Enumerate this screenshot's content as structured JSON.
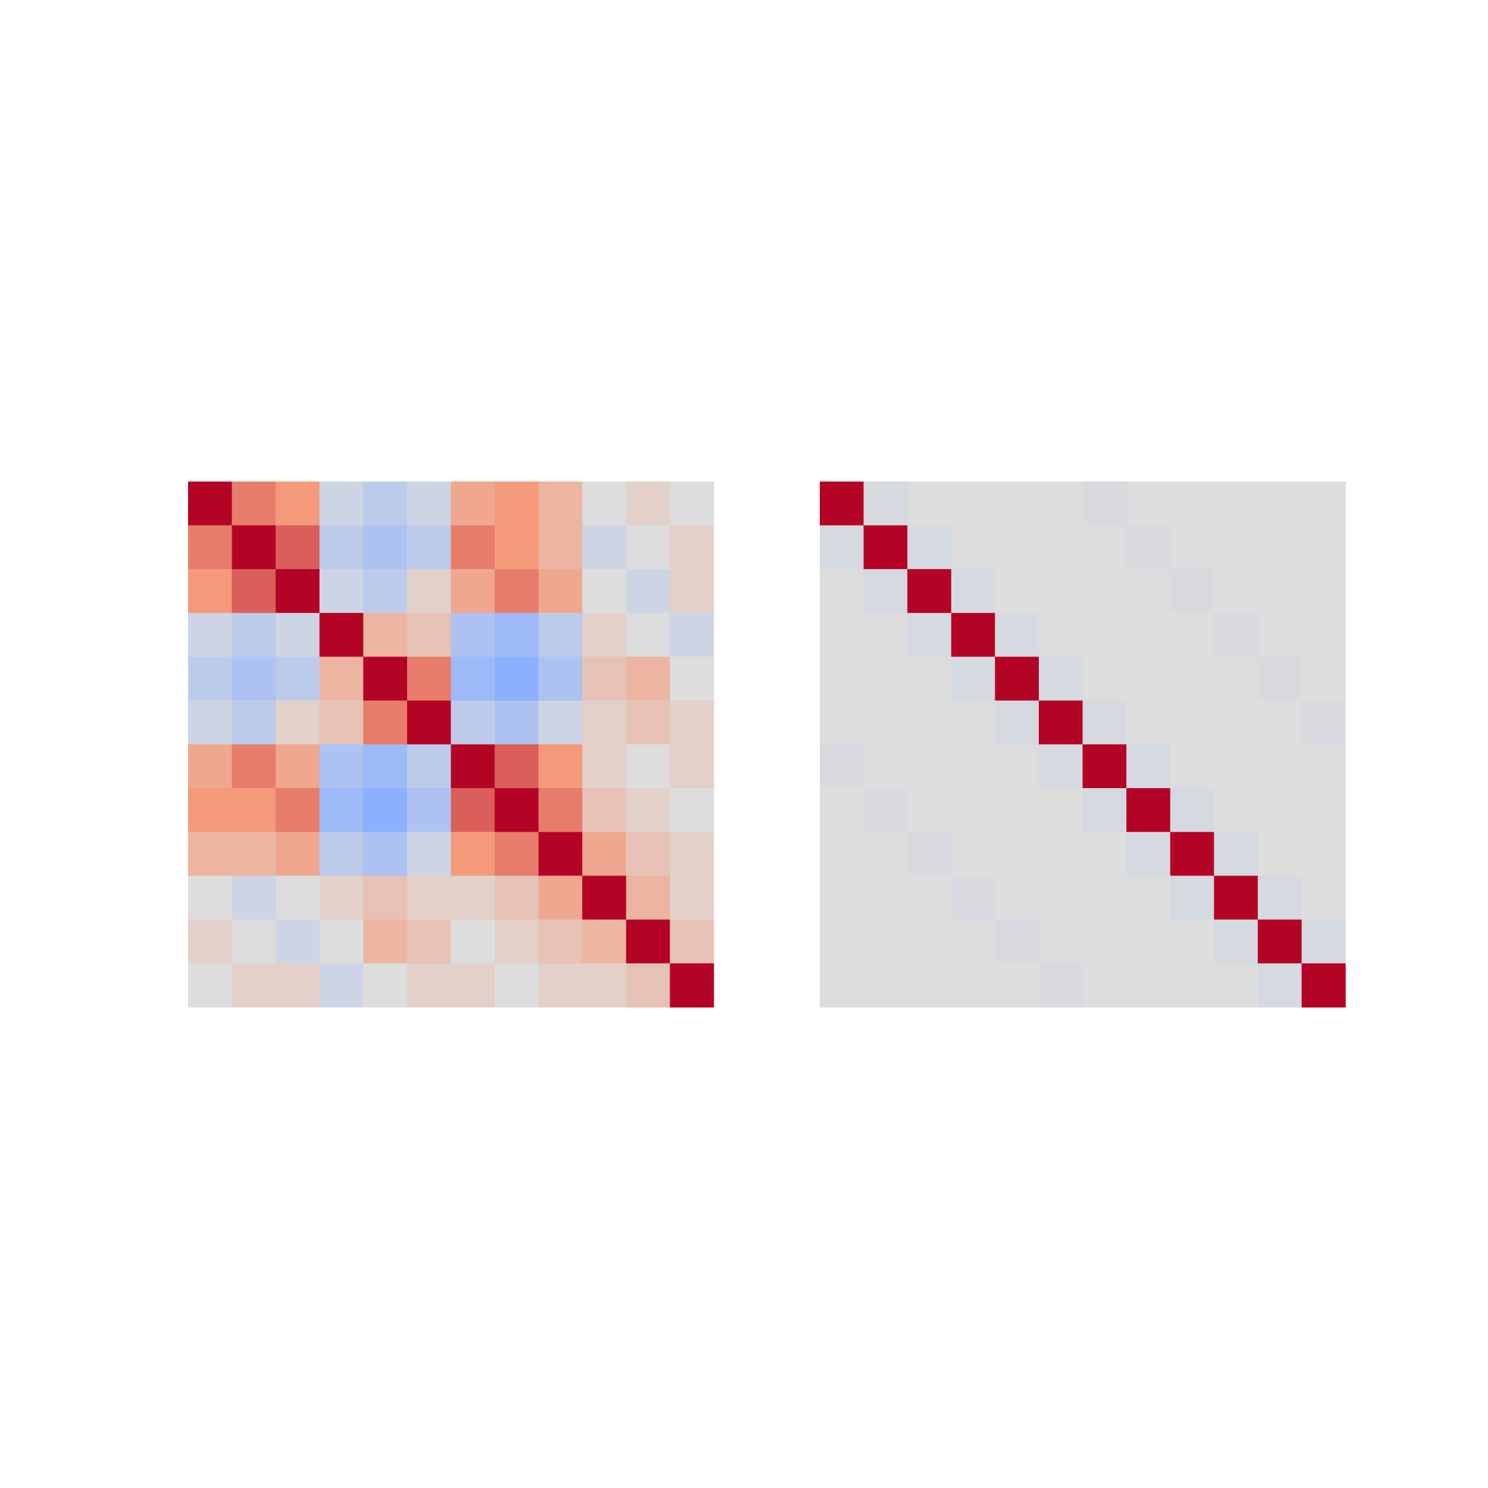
{
  "chart_data": [
    {
      "type": "heatmap",
      "clim": [
        -1,
        1
      ],
      "colors": [
        "#3b4cc0",
        "#8db0fe",
        "#dddddd",
        "#f49a7b",
        "#b40426"
      ],
      "values": [
        [
          1,
          0.6,
          0.5,
          -0.1,
          -0.2,
          -0.1,
          0.4,
          0.5,
          0.3,
          0,
          0.1,
          0
        ],
        [
          0.6,
          1,
          0.7,
          -0.2,
          -0.3,
          -0.2,
          0.6,
          0.5,
          0.3,
          -0.1,
          0,
          0.1
        ],
        [
          0.5,
          0.7,
          1,
          -0.1,
          -0.2,
          0.1,
          0.4,
          0.6,
          0.4,
          0,
          -0.1,
          0.1
        ],
        [
          -0.1,
          -0.2,
          -0.1,
          1,
          0.3,
          0.2,
          -0.3,
          -0.4,
          -0.2,
          0.1,
          0,
          -0.1
        ],
        [
          -0.2,
          -0.3,
          -0.2,
          0.3,
          1,
          0.6,
          -0.4,
          -0.5,
          -0.3,
          0.2,
          0.3,
          0
        ],
        [
          -0.1,
          -0.2,
          0.1,
          0.2,
          0.6,
          1,
          -0.2,
          -0.3,
          -0.1,
          0.1,
          0.2,
          0.1
        ],
        [
          0.4,
          0.6,
          0.4,
          -0.3,
          -0.4,
          -0.2,
          1,
          0.7,
          0.5,
          0.1,
          0,
          0.1
        ],
        [
          0.5,
          0.5,
          0.6,
          -0.4,
          -0.5,
          -0.3,
          0.7,
          1,
          0.6,
          0.2,
          0.1,
          0
        ],
        [
          0.3,
          0.3,
          0.4,
          -0.2,
          -0.3,
          -0.1,
          0.5,
          0.6,
          1,
          0.4,
          0.2,
          0.1
        ],
        [
          0,
          -0.1,
          0,
          0.1,
          0.2,
          0.1,
          0.1,
          0.2,
          0.4,
          1,
          0.3,
          0.1
        ],
        [
          0.1,
          0,
          -0.1,
          0,
          0.3,
          0.2,
          0,
          0.1,
          0.2,
          0.3,
          1,
          0.2
        ],
        [
          0,
          0.1,
          0.1,
          -0.1,
          0,
          0.1,
          0.1,
          0,
          0.1,
          0.1,
          0.2,
          1
        ]
      ]
    },
    {
      "type": "heatmap",
      "clim": [
        -1,
        1
      ],
      "colors": [
        "#3b4cc0",
        "#8db0fe",
        "#dddddd",
        "#f49a7b",
        "#b40426"
      ],
      "values": [
        [
          1,
          -0.05,
          0,
          0,
          0,
          0,
          -0.03,
          0,
          0,
          0,
          0,
          0
        ],
        [
          -0.05,
          1,
          -0.05,
          0,
          0,
          0,
          0,
          -0.03,
          0,
          0,
          0,
          0
        ],
        [
          0,
          -0.05,
          1,
          -0.05,
          0,
          0,
          0,
          0,
          -0.03,
          0,
          0,
          0
        ],
        [
          0,
          0,
          -0.05,
          1,
          -0.05,
          0,
          0,
          0,
          0,
          -0.03,
          0,
          0
        ],
        [
          0,
          0,
          0,
          -0.05,
          1,
          -0.05,
          0,
          0,
          0,
          0,
          -0.03,
          0
        ],
        [
          0,
          0,
          0,
          0,
          -0.05,
          1,
          -0.05,
          0,
          0,
          0,
          0,
          -0.03
        ],
        [
          -0.03,
          0,
          0,
          0,
          0,
          -0.05,
          1,
          -0.05,
          0,
          0,
          0,
          0
        ],
        [
          0,
          -0.03,
          0,
          0,
          0,
          0,
          -0.05,
          1,
          -0.05,
          0,
          0,
          0
        ],
        [
          0,
          0,
          -0.03,
          0,
          0,
          0,
          0,
          -0.05,
          1,
          -0.05,
          0,
          0
        ],
        [
          0,
          0,
          0,
          -0.03,
          0,
          0,
          0,
          0,
          -0.05,
          1,
          -0.05,
          0
        ],
        [
          0,
          0,
          0,
          0,
          -0.03,
          0,
          0,
          0,
          0,
          -0.05,
          1,
          -0.05
        ],
        [
          0,
          0,
          0,
          0,
          0,
          -0.03,
          0,
          0,
          0,
          0,
          -0.05,
          1
        ]
      ]
    }
  ]
}
